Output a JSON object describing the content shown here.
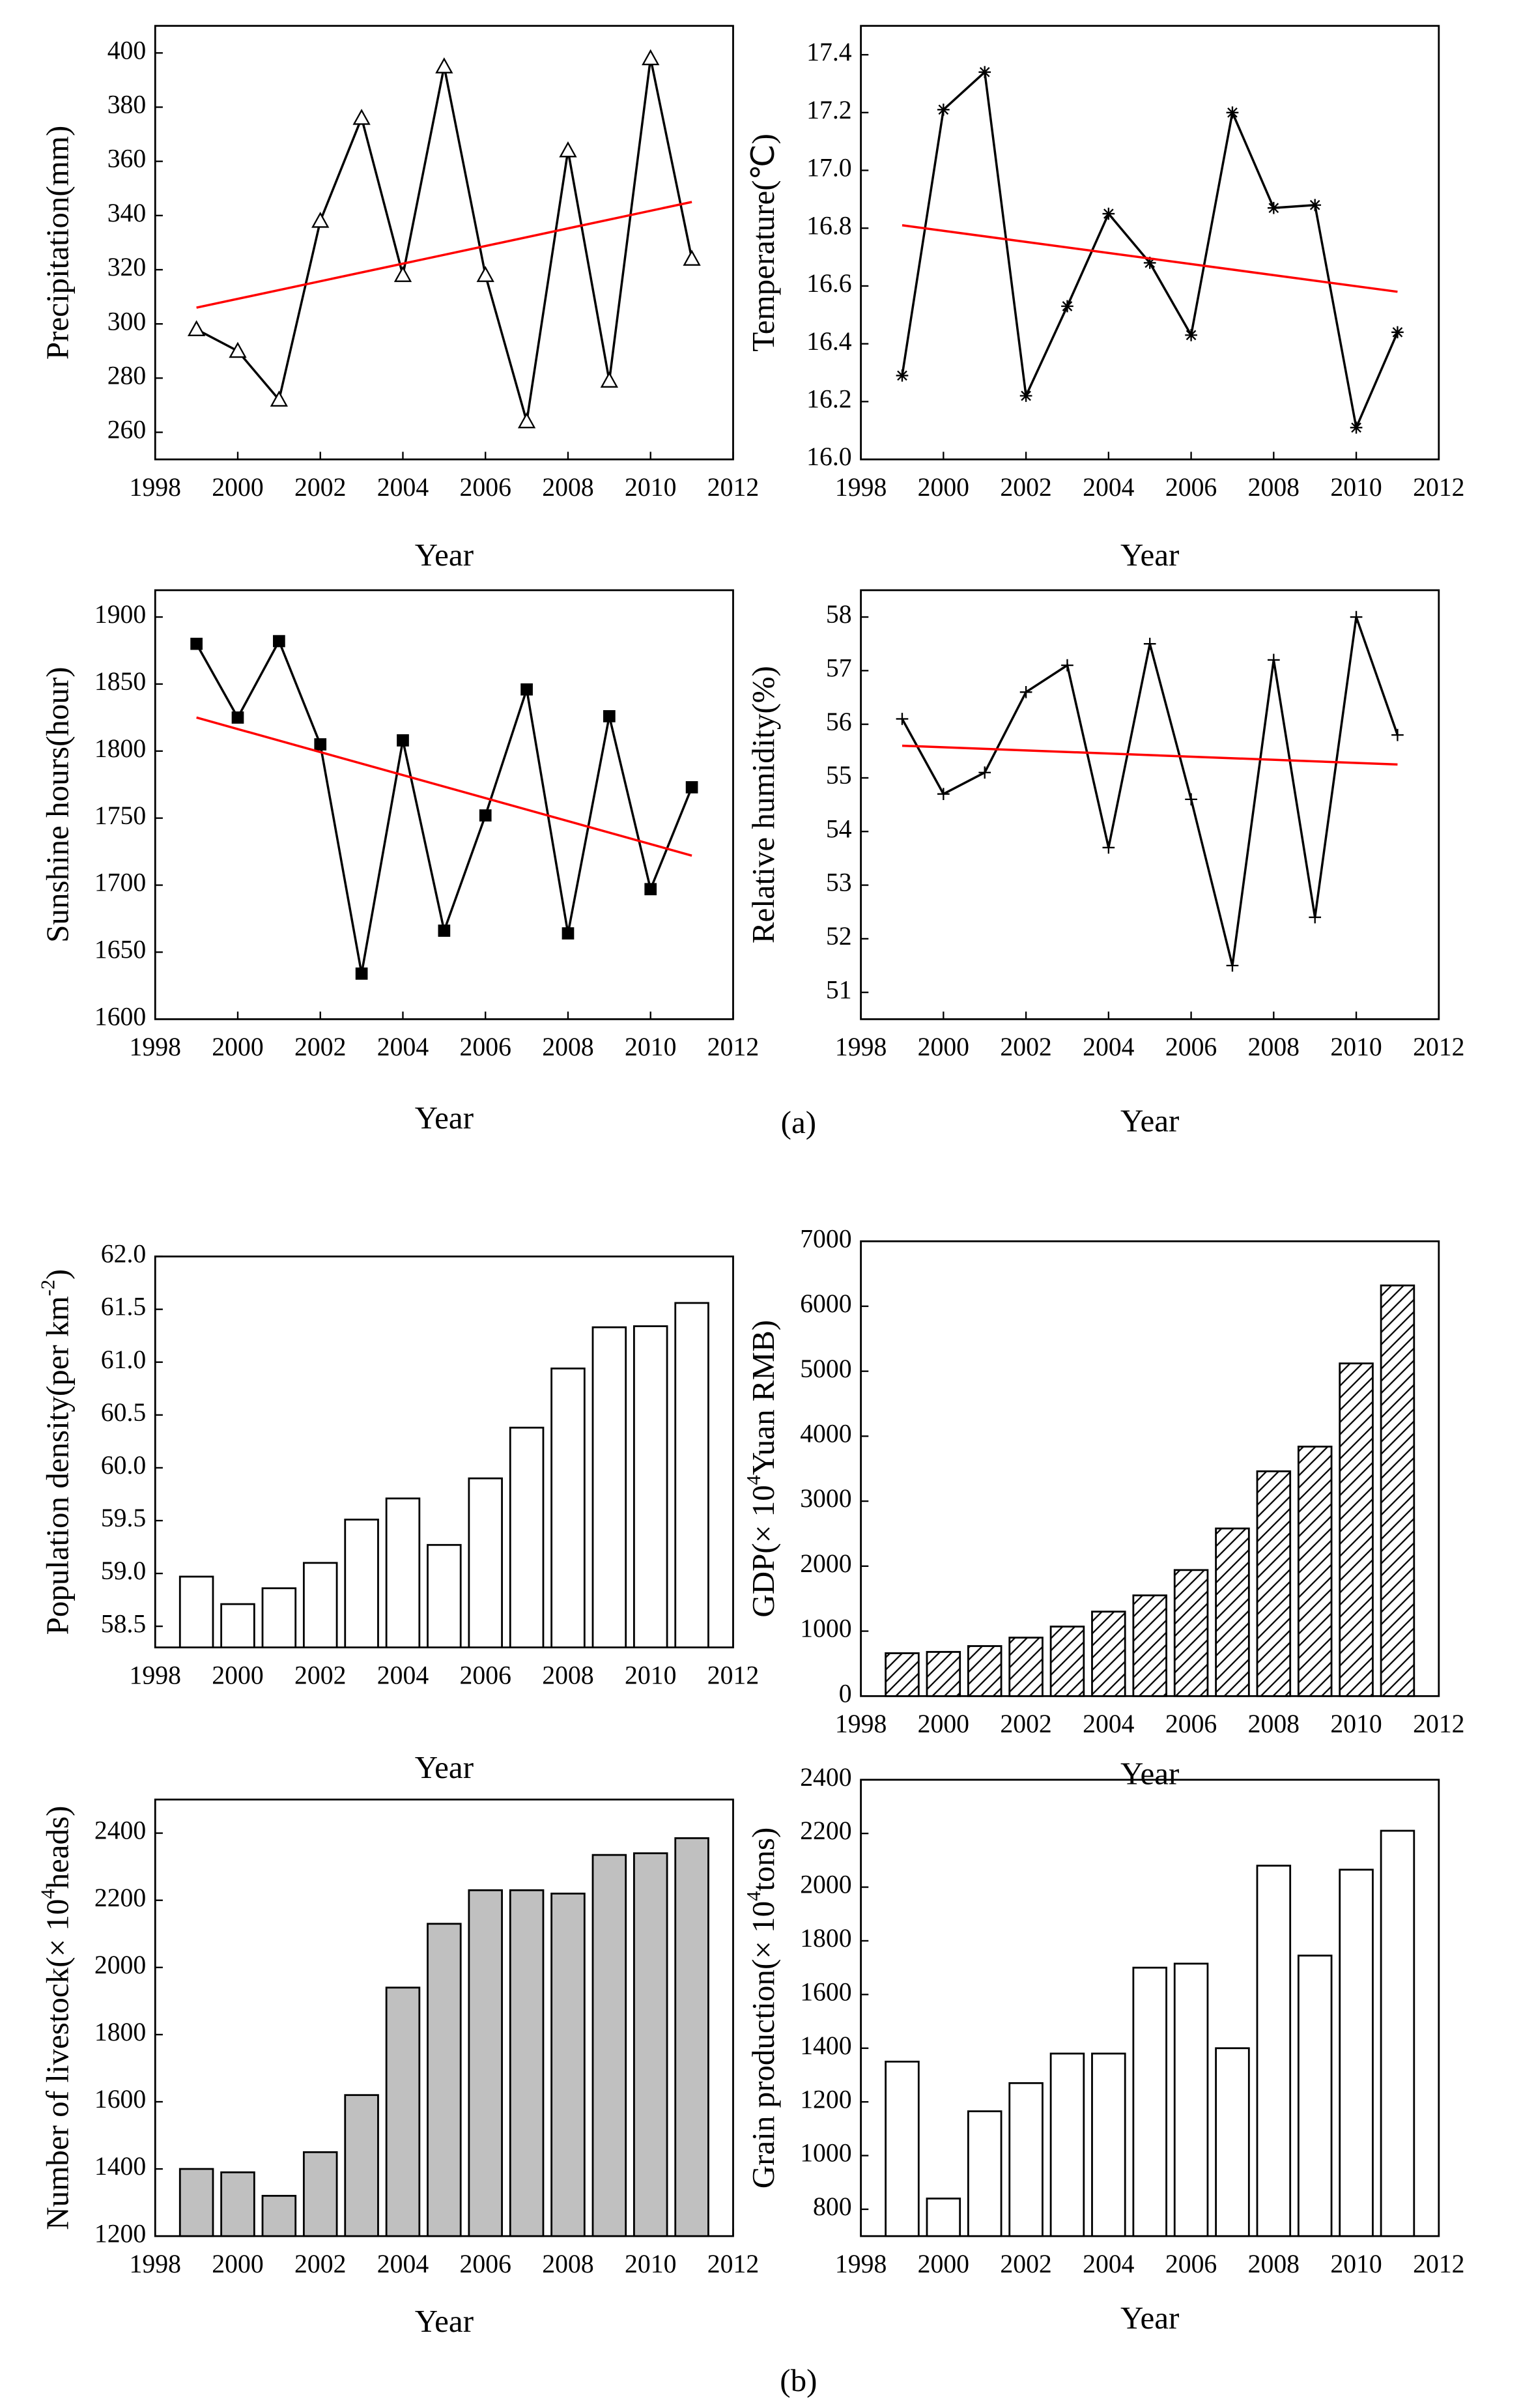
{
  "chart_data": [
    {
      "type": "line",
      "y_label": [
        "Precipitation(mm)"
      ],
      "x_label": "Year",
      "x": [
        1999,
        2000,
        2001,
        2002,
        2003,
        2004,
        2005,
        2006,
        2007,
        2008,
        2009,
        2010,
        2011
      ],
      "series": [
        {
          "color": "#000000",
          "marker": "triangle",
          "values": [
            298,
            290,
            272,
            338,
            376,
            318,
            395,
            318,
            264,
            364,
            279,
            398,
            324
          ]
        },
        {
          "color": "#ff0000",
          "x": [
            1999,
            2011
          ],
          "values": [
            306,
            345
          ]
        }
      ],
      "xlim": [
        1998,
        2012
      ],
      "xticks": [
        1998,
        2000,
        2002,
        2004,
        2006,
        2008,
        2010,
        2012
      ],
      "ylim": [
        250,
        410
      ],
      "yticks": [
        260,
        280,
        300,
        320,
        340,
        360,
        380,
        400
      ]
    },
    {
      "type": "line",
      "y_label": [
        "Temperature(℃)"
      ],
      "x_label": "Year",
      "x": [
        1999,
        2000,
        2001,
        2002,
        2003,
        2004,
        2005,
        2006,
        2007,
        2008,
        2009,
        2010,
        2011
      ],
      "series": [
        {
          "color": "#000000",
          "marker": "asterisk",
          "values": [
            16.29,
            17.21,
            17.34,
            16.22,
            16.53,
            16.85,
            16.68,
            16.43,
            17.2,
            16.87,
            16.88,
            16.11,
            16.44
          ]
        },
        {
          "color": "#ff0000",
          "x": [
            1999,
            2011
          ],
          "values": [
            16.81,
            16.58
          ]
        }
      ],
      "xlim": [
        1998,
        2012
      ],
      "xticks": [
        1998,
        2000,
        2002,
        2004,
        2006,
        2008,
        2010,
        2012
      ],
      "ylim": [
        16.0,
        17.5
      ],
      "yticks": [
        {
          "value": 16,
          "label": "16.0"
        },
        16.2,
        16.4,
        16.6,
        16.8,
        {
          "value": 17,
          "label": "17.0"
        },
        17.2,
        17.4
      ]
    },
    {
      "type": "line",
      "y_label": [
        "Sunshine hours(hour)"
      ],
      "x_label": "Year",
      "x": [
        1999,
        2000,
        2001,
        2002,
        2003,
        2004,
        2005,
        2006,
        2007,
        2008,
        2009,
        2010,
        2011
      ],
      "series": [
        {
          "color": "#000000",
          "marker": "square",
          "values": [
            1880,
            1825,
            1882,
            1805,
            1634,
            1808,
            1666,
            1752,
            1846,
            1664,
            1826,
            1697,
            1773
          ]
        },
        {
          "color": "#ff0000",
          "x": [
            1999,
            2011
          ],
          "values": [
            1825,
            1722
          ]
        }
      ],
      "xlim": [
        1998,
        2012
      ],
      "xticks": [
        1998,
        2000,
        2002,
        2004,
        2006,
        2008,
        2010,
        2012
      ],
      "ylim": [
        1600,
        1920
      ],
      "yticks": [
        1600,
        1650,
        1700,
        1750,
        1800,
        1850,
        1900
      ]
    },
    {
      "type": "line",
      "y_label": [
        "Relative humidity(%)"
      ],
      "x_label": "Year",
      "x": [
        1999,
        2000,
        2001,
        2002,
        2003,
        2004,
        2005,
        2006,
        2007,
        2008,
        2009,
        2010,
        2011
      ],
      "series": [
        {
          "color": "#000000",
          "marker": "plus",
          "values": [
            56.1,
            54.7,
            55.1,
            56.6,
            57.1,
            53.7,
            57.5,
            54.6,
            51.5,
            57.2,
            52.4,
            58.0,
            55.8
          ]
        },
        {
          "color": "#ff0000",
          "x": [
            1999,
            2011
          ],
          "values": [
            55.6,
            55.25
          ]
        }
      ],
      "xlim": [
        1998,
        2012
      ],
      "xticks": [
        1998,
        2000,
        2002,
        2004,
        2006,
        2008,
        2010,
        2012
      ],
      "ylim": [
        50.5,
        58.5
      ],
      "yticks": [
        51,
        52,
        53,
        54,
        55,
        56,
        57,
        58
      ]
    },
    {
      "type": "bar",
      "y_label": [
        "Population density(per km",
        "-2",
        ")"
      ],
      "x_label": "Year",
      "x": [
        1999,
        2000,
        2001,
        2002,
        2003,
        2004,
        2005,
        2006,
        2007,
        2008,
        2009,
        2010,
        2011
      ],
      "values": [
        58.97,
        58.71,
        58.86,
        59.1,
        59.51,
        59.71,
        59.27,
        59.9,
        60.38,
        60.94,
        61.33,
        61.34,
        61.56
      ],
      "color": "#ffffff",
      "fill": "solid",
      "xlim": [
        1998,
        2012
      ],
      "xticks": [
        1998,
        2000,
        2002,
        2004,
        2006,
        2008,
        2010,
        2012
      ],
      "ylim": [
        58.3,
        62.0
      ],
      "yticks": [
        58.5,
        {
          "value": 59,
          "label": "59.0"
        },
        59.5,
        {
          "value": 60,
          "label": "60.0"
        },
        60.5,
        {
          "value": 61,
          "label": "61.0"
        },
        61.5,
        {
          "value": 62,
          "label": "62.0"
        }
      ]
    },
    {
      "type": "bar",
      "y_label": [
        "GDP(× 10",
        "4",
        "Yuan RMB)"
      ],
      "x_label": "Year",
      "x": [
        1999,
        2000,
        2001,
        2002,
        2003,
        2004,
        2005,
        2006,
        2007,
        2008,
        2009,
        2010,
        2011
      ],
      "values": [
        660,
        680,
        770,
        900,
        1070,
        1300,
        1550,
        1940,
        2580,
        3460,
        3840,
        5120,
        6320
      ],
      "color": "#ffffff",
      "fill": "hatch",
      "xlim": [
        1998,
        2012
      ],
      "xticks": [
        1998,
        2000,
        2002,
        2004,
        2006,
        2008,
        2010,
        2012
      ],
      "ylim": [
        0,
        7000
      ],
      "yticks": [
        0,
        1000,
        2000,
        3000,
        4000,
        5000,
        6000,
        7000
      ]
    },
    {
      "type": "bar",
      "y_label": [
        "Number of livestock(× 10",
        "4",
        "heads)"
      ],
      "x_label": "Year",
      "x": [
        1999,
        2000,
        2001,
        2002,
        2003,
        2004,
        2005,
        2006,
        2007,
        2008,
        2009,
        2010,
        2011
      ],
      "values": [
        1400,
        1390,
        1320,
        1450,
        1620,
        1940,
        2130,
        2230,
        2230,
        2220,
        2335,
        2340,
        2385
      ],
      "color": "#c0c0c0",
      "fill": "solid",
      "xlim": [
        1998,
        2012
      ],
      "xticks": [
        1998,
        2000,
        2002,
        2004,
        2006,
        2008,
        2010,
        2012
      ],
      "ylim": [
        1200,
        2500
      ],
      "yticks": [
        1200,
        1400,
        1600,
        1800,
        2000,
        2200,
        2400
      ]
    },
    {
      "type": "bar",
      "y_label": [
        "Grain production(× 10",
        "4",
        "tons)"
      ],
      "x_label": "Year",
      "x": [
        1999,
        2000,
        2001,
        2002,
        2003,
        2004,
        2005,
        2006,
        2007,
        2008,
        2009,
        2010,
        2011
      ],
      "values": [
        1350,
        840,
        1165,
        1270,
        1380,
        1380,
        1700,
        1715,
        1400,
        2080,
        1745,
        2065,
        2210
      ],
      "color": "#ffffff",
      "fill": "solid",
      "xlim": [
        1998,
        2012
      ],
      "xticks": [
        1998,
        2000,
        2002,
        2004,
        2006,
        2008,
        2010,
        2012
      ],
      "ylim": [
        700,
        2400
      ],
      "yticks": [
        800,
        1000,
        1200,
        1400,
        1600,
        1800,
        2000,
        2200,
        2400
      ]
    }
  ],
  "panel_labels": [
    "(a)",
    "(b)"
  ]
}
